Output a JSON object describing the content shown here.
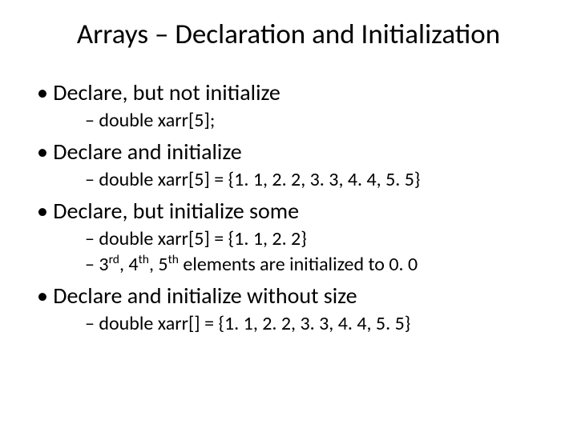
{
  "title": "Arrays – Declaration and Initialization",
  "b1": {
    "text": "Declare, but not initialize",
    "s1": "double xarr[5];"
  },
  "b2": {
    "text": "Declare and initialize",
    "s1": "double xarr[5] = {1. 1, 2. 2, 3. 3, 4. 4, 5. 5}"
  },
  "b3": {
    "text": "Declare, but initialize some",
    "s1": "double xarr[5] = {1. 1, 2. 2}"
  },
  "b3s2": {
    "p1": "3",
    "sup1": "rd",
    "p2": ", 4",
    "sup2": "th",
    "p3": ", 5",
    "sup3": "th",
    "p4": " elements are initialized to 0. 0"
  },
  "b4": {
    "text": "Declare and initialize without size",
    "s1": "double xarr[] = {1. 1, 2. 2, 3. 3, 4. 4, 5. 5}"
  },
  "style": {
    "background_color": "#ffffff",
    "text_color": "#000000",
    "title_fontsize_pt": 35,
    "l1_fontsize_pt": 28,
    "l2_fontsize_pt": 24,
    "font_family": "Calibri"
  }
}
